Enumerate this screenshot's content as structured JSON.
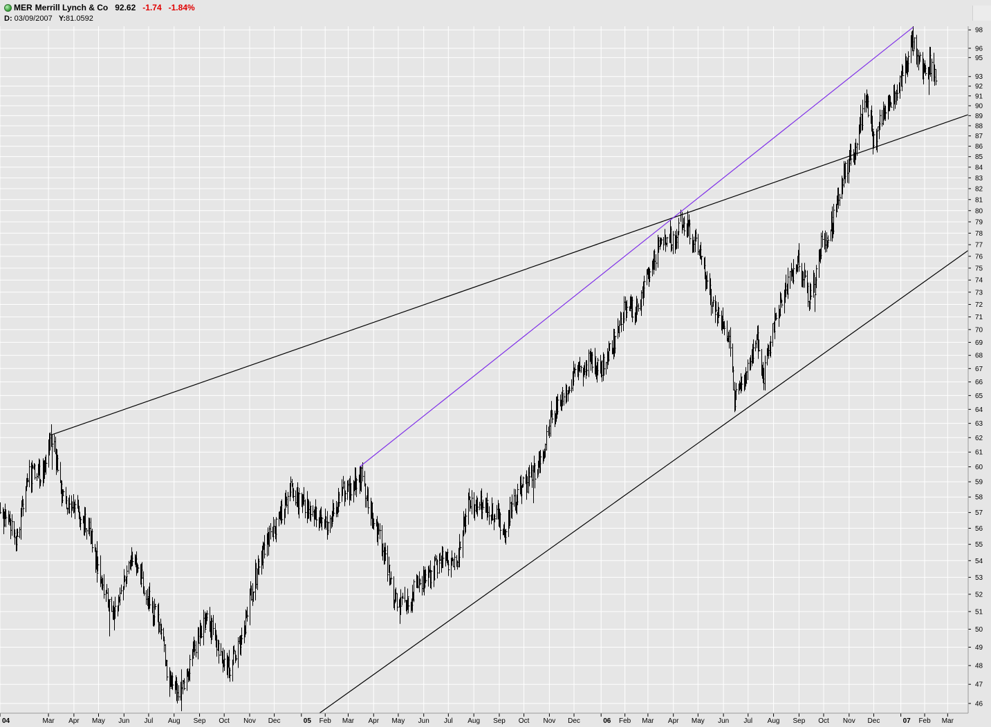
{
  "header": {
    "symbol": "MER",
    "company": "Merrill Lynch & Co",
    "last": "92.62",
    "change": "-1.74",
    "change_pct": "-1.84%",
    "cursor_date_label": "D:",
    "cursor_date": "03/09/2007",
    "cursor_value_label": "Y:",
    "cursor_value": "81.0592",
    "status_color": "#2f9a2f",
    "negative_color": "#e00000"
  },
  "chart_data": {
    "type": "ohlc",
    "title": "MER Merrill Lynch & Co",
    "x_range": [
      "2004-01-02",
      "2007-03-26"
    ],
    "y_range": [
      45.5,
      98.4
    ],
    "y_scale": "log",
    "grid": true,
    "y_ticks": [
      46,
      47,
      48,
      49,
      50,
      51,
      52,
      53,
      54,
      55,
      56,
      57,
      58,
      59,
      60,
      61,
      62,
      63,
      64,
      65,
      66,
      67,
      68,
      69,
      70,
      71,
      72,
      73,
      74,
      75,
      76,
      77,
      78,
      79,
      80,
      81,
      82,
      83,
      84,
      85,
      86,
      87,
      88,
      89,
      90,
      91,
      92,
      93,
      95,
      96,
      98
    ],
    "x_ticks": [
      {
        "label": "04",
        "date": "2004-01-02",
        "bold": true
      },
      {
        "label": "Mar",
        "date": "2004-03-01"
      },
      {
        "label": "Apr",
        "date": "2004-04-01"
      },
      {
        "label": "May",
        "date": "2004-05-01"
      },
      {
        "label": "Jun",
        "date": "2004-06-01"
      },
      {
        "label": "Jul",
        "date": "2004-07-01"
      },
      {
        "label": "Aug",
        "date": "2004-08-01"
      },
      {
        "label": "Sep",
        "date": "2004-09-01"
      },
      {
        "label": "Oct",
        "date": "2004-10-01"
      },
      {
        "label": "Nov",
        "date": "2004-11-01"
      },
      {
        "label": "Dec",
        "date": "2004-12-01"
      },
      {
        "label": "05",
        "date": "2005-01-03",
        "bold": true
      },
      {
        "label": "Feb",
        "date": "2005-02-01"
      },
      {
        "label": "Mar",
        "date": "2005-03-01"
      },
      {
        "label": "Apr",
        "date": "2005-04-01"
      },
      {
        "label": "May",
        "date": "2005-05-01"
      },
      {
        "label": "Jun",
        "date": "2005-06-01"
      },
      {
        "label": "Jul",
        "date": "2005-07-01"
      },
      {
        "label": "Aug",
        "date": "2005-08-01"
      },
      {
        "label": "Sep",
        "date": "2005-09-01"
      },
      {
        "label": "Oct",
        "date": "2005-10-01"
      },
      {
        "label": "Nov",
        "date": "2005-11-01"
      },
      {
        "label": "Dec",
        "date": "2005-12-01"
      },
      {
        "label": "06",
        "date": "2006-01-03",
        "bold": true
      },
      {
        "label": "Feb",
        "date": "2006-02-01"
      },
      {
        "label": "Mar",
        "date": "2006-03-01"
      },
      {
        "label": "Apr",
        "date": "2006-04-01"
      },
      {
        "label": "May",
        "date": "2006-05-01"
      },
      {
        "label": "Jun",
        "date": "2006-06-01"
      },
      {
        "label": "Jul",
        "date": "2006-07-01"
      },
      {
        "label": "Aug",
        "date": "2006-08-01"
      },
      {
        "label": "Sep",
        "date": "2006-09-01"
      },
      {
        "label": "Oct",
        "date": "2006-10-01"
      },
      {
        "label": "Nov",
        "date": "2006-11-01"
      },
      {
        "label": "Dec",
        "date": "2006-12-01"
      },
      {
        "label": "07",
        "date": "2007-01-03",
        "bold": true
      },
      {
        "label": "Feb",
        "date": "2007-02-01"
      },
      {
        "label": "Mar",
        "date": "2007-03-01"
      }
    ],
    "price_path": [
      [
        "2004-01-02",
        57.0
      ],
      [
        "2004-01-22",
        55.3
      ],
      [
        "2004-02-05",
        59.5
      ],
      [
        "2004-02-20",
        59.4
      ],
      [
        "2004-03-05",
        62.0
      ],
      [
        "2004-03-20",
        57.5
      ],
      [
        "2004-04-05",
        57.2
      ],
      [
        "2004-04-20",
        55.8
      ],
      [
        "2004-05-05",
        52.5
      ],
      [
        "2004-05-18",
        51.0
      ],
      [
        "2004-05-31",
        52.8
      ],
      [
        "2004-06-14",
        54.2
      ],
      [
        "2004-06-28",
        52.0
      ],
      [
        "2004-07-12",
        50.5
      ],
      [
        "2004-07-26",
        47.2
      ],
      [
        "2004-08-09",
        46.3
      ],
      [
        "2004-08-25",
        49.0
      ],
      [
        "2004-09-10",
        50.5
      ],
      [
        "2004-09-25",
        49.0
      ],
      [
        "2004-10-08",
        47.8
      ],
      [
        "2004-10-22",
        49.5
      ],
      [
        "2004-11-05",
        52.5
      ],
      [
        "2004-11-20",
        55.0
      ],
      [
        "2004-12-05",
        56.5
      ],
      [
        "2004-12-20",
        58.5
      ],
      [
        "2005-01-05",
        57.5
      ],
      [
        "2005-01-20",
        57.0
      ],
      [
        "2005-02-05",
        56.0
      ],
      [
        "2005-02-20",
        58.3
      ],
      [
        "2005-03-05",
        58.5
      ],
      [
        "2005-03-15",
        59.7
      ],
      [
        "2005-03-30",
        57.0
      ],
      [
        "2005-04-12",
        54.5
      ],
      [
        "2005-04-28",
        51.5
      ],
      [
        "2005-05-10",
        51.2
      ],
      [
        "2005-05-25",
        52.7
      ],
      [
        "2005-06-10",
        53.3
      ],
      [
        "2005-06-25",
        54.2
      ],
      [
        "2005-07-10",
        53.8
      ],
      [
        "2005-07-25",
        57.5
      ],
      [
        "2005-08-10",
        57.5
      ],
      [
        "2005-08-25",
        57.0
      ],
      [
        "2005-09-08",
        56.0
      ],
      [
        "2005-09-20",
        58.0
      ],
      [
        "2005-10-05",
        59.0
      ],
      [
        "2005-10-20",
        60.0
      ],
      [
        "2005-11-03",
        63.5
      ],
      [
        "2005-11-18",
        65.5
      ],
      [
        "2005-12-03",
        66.5
      ],
      [
        "2005-12-18",
        67.5
      ],
      [
        "2006-01-03",
        67.0
      ],
      [
        "2006-01-18",
        69.0
      ],
      [
        "2006-02-02",
        72.0
      ],
      [
        "2006-02-17",
        71.5
      ],
      [
        "2006-03-04",
        75.0
      ],
      [
        "2006-03-19",
        77.5
      ],
      [
        "2006-04-03",
        77.5
      ],
      [
        "2006-04-12",
        79.3
      ],
      [
        "2006-04-25",
        77.8
      ],
      [
        "2006-05-10",
        74.0
      ],
      [
        "2006-05-25",
        71.0
      ],
      [
        "2006-06-08",
        69.5
      ],
      [
        "2006-06-14",
        64.5
      ],
      [
        "2006-06-28",
        66.5
      ],
      [
        "2006-07-12",
        69.5
      ],
      [
        "2006-07-20",
        66.5
      ],
      [
        "2006-08-03",
        71.0
      ],
      [
        "2006-08-18",
        73.5
      ],
      [
        "2006-08-31",
        75.5
      ],
      [
        "2006-09-14",
        72.5
      ],
      [
        "2006-09-28",
        77.0
      ],
      [
        "2006-10-12",
        79.0
      ],
      [
        "2006-10-26",
        83.5
      ],
      [
        "2006-11-09",
        86.0
      ],
      [
        "2006-11-22",
        91.0
      ],
      [
        "2006-12-01",
        86.5
      ],
      [
        "2006-12-15",
        90.0
      ],
      [
        "2007-01-02",
        92.0
      ],
      [
        "2007-01-17",
        97.0
      ],
      [
        "2007-01-30",
        93.5
      ],
      [
        "2007-02-08",
        94.3
      ],
      [
        "2007-02-14",
        92.6
      ]
    ],
    "bar_anchors": [
      {
        "date": "2004-03-05",
        "high": 62.2,
        "low": 59.8
      },
      {
        "date": "2004-05-14",
        "high": 51.7,
        "low": 49.6
      },
      {
        "date": "2004-08-10",
        "high": 47.8,
        "low": 45.6
      },
      {
        "date": "2005-03-15",
        "high": 60.0,
        "low": 58.2
      },
      {
        "date": "2005-05-03",
        "high": 51.8,
        "low": 50.3
      },
      {
        "date": "2005-10-12",
        "high": 60.1,
        "low": 57.6
      },
      {
        "date": "2006-04-18",
        "high": 80.0,
        "low": 77.6
      },
      {
        "date": "2006-06-14",
        "high": 66.0,
        "low": 63.8
      },
      {
        "date": "2006-09-20",
        "high": 72.8,
        "low": 71.4
      },
      {
        "date": "2006-12-05",
        "high": 87.5,
        "low": 85.4
      },
      {
        "date": "2007-01-18",
        "high": 98.4,
        "low": 95.2
      },
      {
        "date": "2007-02-06",
        "high": 94.0,
        "low": 91.1
      }
    ],
    "trendlines": [
      {
        "color": "#000000",
        "start": [
          "2004-03-05",
          62.2
        ],
        "end": [
          "2007-03-26",
          89.1
        ]
      },
      {
        "color": "#7f2fe8",
        "start": [
          "2005-03-15",
          60.0
        ],
        "end": [
          "2007-01-18",
          98.3
        ]
      },
      {
        "color": "#000000",
        "start": [
          "2005-01-25",
          45.5
        ],
        "end": [
          "2007-03-26",
          76.5
        ]
      }
    ]
  }
}
